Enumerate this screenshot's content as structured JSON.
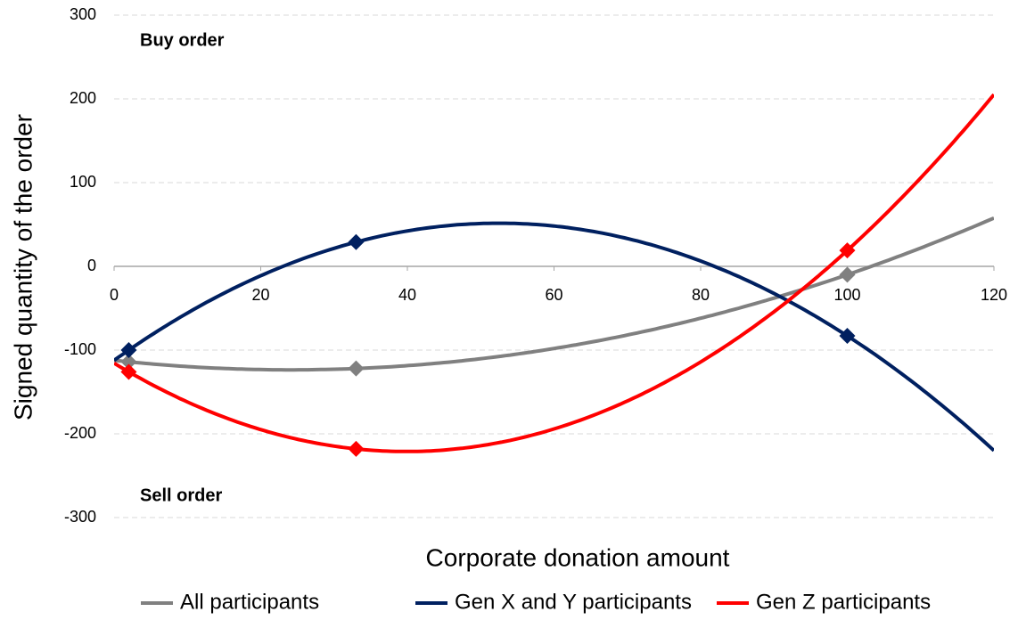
{
  "chart_data": {
    "type": "scatter",
    "x_label": "Corporate donation amount",
    "y_label": "Signed quantity of the order",
    "annotations": [
      "Buy order",
      "Sell order"
    ],
    "x": [
      2,
      33,
      100
    ],
    "series": [
      {
        "name": "All participants",
        "color": "#808080",
        "values": [
          -114,
          -122,
          -10
        ]
      },
      {
        "name": "Gen X and Y participants",
        "color": "#002060",
        "values": [
          -100,
          29,
          -83
        ]
      },
      {
        "name": "Gen Z participants",
        "color": "#ff0000",
        "values": [
          -126,
          -218,
          19
        ]
      }
    ],
    "trendline": "polynomial",
    "xlim": [
      0,
      120
    ],
    "xticks": [
      0,
      20,
      40,
      60,
      80,
      100,
      120
    ],
    "ylim": [
      -300,
      300
    ],
    "yticks": [
      -300,
      -200,
      -100,
      0,
      100,
      200,
      300
    ],
    "grid": true,
    "legend": "bottom"
  }
}
